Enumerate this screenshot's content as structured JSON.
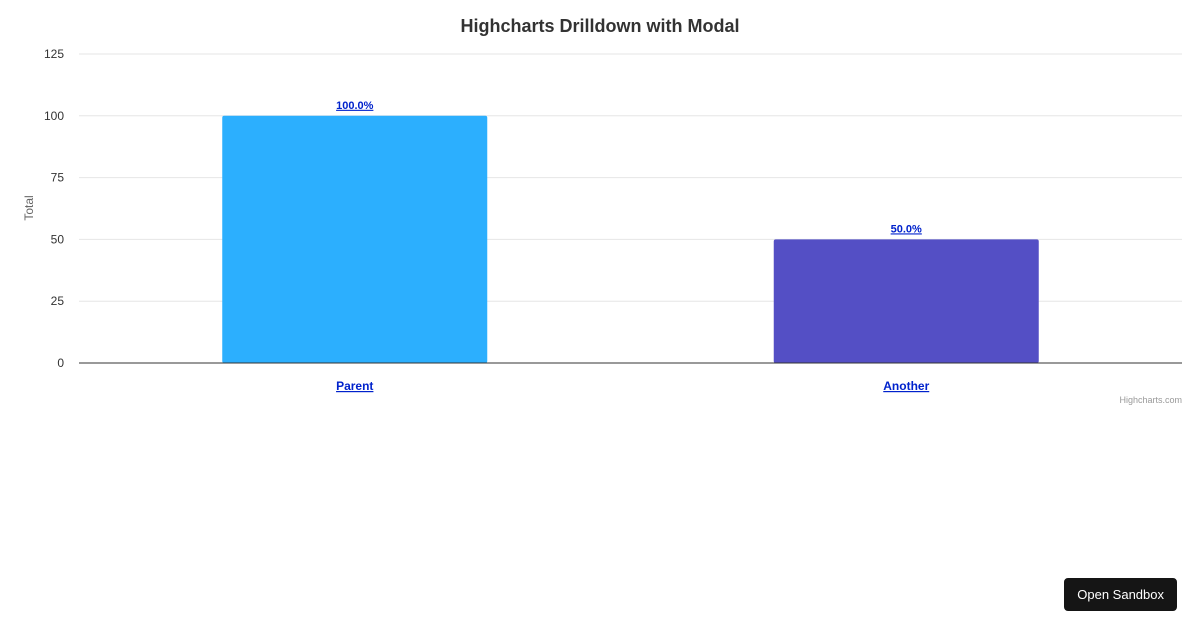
{
  "chart_data": {
    "type": "bar",
    "title": "Highcharts Drilldown with Modal",
    "xlabel": "",
    "ylabel": "Total",
    "categories": [
      "Parent",
      "Another"
    ],
    "values": [
      100,
      50
    ],
    "data_labels": [
      "100.0%",
      "50.0%"
    ],
    "colors": [
      "#2caffe",
      "#544fc5"
    ],
    "ylim": [
      0,
      125
    ],
    "yticks": [
      0,
      25,
      50,
      75,
      100,
      125
    ],
    "grid": true,
    "legend": "none",
    "credits": "Highcharts.com"
  },
  "sandbox_button": {
    "label": "Open Sandbox"
  }
}
